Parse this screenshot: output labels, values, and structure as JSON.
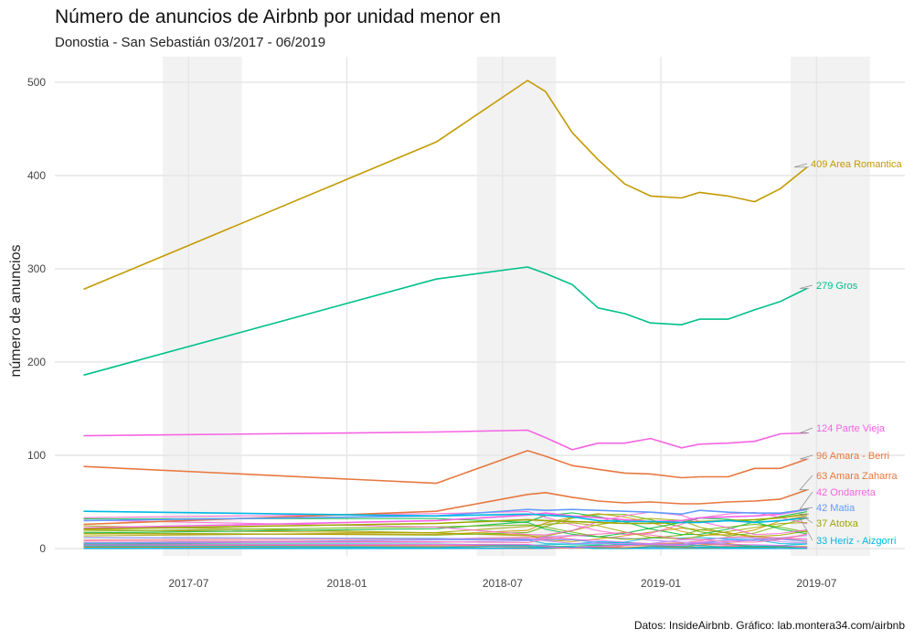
{
  "chart_data": {
    "type": "line",
    "title": "Número de anuncios de Airbnb por unidad menor en",
    "subtitle": "Donostia - San Sebastián 03/2017 - 06/2019",
    "ylabel": "número de anuncios",
    "xlabel": "",
    "caption": "Datos: InsideAirbnb. Gráfico: lab.montera34.com/airbnb",
    "ylim": [
      -8,
      528
    ],
    "yticks": [
      0,
      100,
      200,
      300,
      400,
      500
    ],
    "xticks": [
      {
        "value": "2017-07-01",
        "label": "2017-07"
      },
      {
        "value": "2018-01-01",
        "label": "2018-01"
      },
      {
        "value": "2018-07-01",
        "label": "2018-07"
      },
      {
        "value": "2019-01-01",
        "label": "2019-01"
      },
      {
        "value": "2019-07-01",
        "label": "2019-07"
      }
    ],
    "shaded_periods": [
      [
        "2017-06-01",
        "2017-09-01"
      ],
      [
        "2018-06-01",
        "2018-09-01"
      ],
      [
        "2019-06-01",
        "2019-09-01"
      ]
    ],
    "grid": true,
    "dates": [
      "2017-03-01",
      "2018-04-15",
      "2018-07-30",
      "2018-08-20",
      "2018-09-20",
      "2018-10-20",
      "2018-11-20",
      "2018-12-20",
      "2019-01-25",
      "2019-02-15",
      "2019-03-20",
      "2019-04-20",
      "2019-05-20",
      "2019-06-20"
    ],
    "series": [
      {
        "name": "Area Romantica",
        "label": "409 Area Romantica",
        "color": "#C49A00",
        "values": [
          278,
          436,
          502,
          490,
          446,
          417,
          391,
          378,
          376,
          382,
          378,
          372,
          386,
          409
        ]
      },
      {
        "name": "Gros",
        "label": "279 Gros",
        "color": "#00C08B",
        "values": [
          186,
          289,
          302,
          295,
          283,
          258,
          252,
          242,
          240,
          246,
          246,
          256,
          265,
          279
        ]
      },
      {
        "name": "Parte Vieja",
        "label": "124 Parte Vieja",
        "color": "#F564E3",
        "values": [
          121,
          125,
          127,
          119,
          106,
          113,
          113,
          118,
          108,
          112,
          113,
          115,
          123,
          124
        ]
      },
      {
        "name": "Amara - Berri",
        "label": "96 Amara - Berri",
        "color": "#E7783F",
        "values": [
          88,
          70,
          105,
          99,
          89,
          85,
          81,
          80,
          76,
          77,
          77,
          86,
          86,
          96
        ]
      },
      {
        "name": "Amara Zaharra",
        "label": "63 Amara Zaharra",
        "color": "#E7783F",
        "values": [
          26,
          40,
          58,
          60,
          55,
          51,
          49,
          50,
          48,
          48,
          50,
          51,
          53,
          63
        ]
      },
      {
        "name": "Ondarreta",
        "label": "42 Ondarreta",
        "color": "#F564E3",
        "values": [
          22,
          30,
          36,
          38,
          35,
          33,
          31,
          29,
          30,
          33,
          34,
          35,
          37,
          42
        ]
      },
      {
        "name": "Matia",
        "label": "42 Matia",
        "color": "#619CFF",
        "values": [
          30,
          35,
          42,
          41,
          42,
          41,
          40,
          39,
          37,
          41,
          39,
          38,
          38,
          42
        ]
      },
      {
        "name": "Atotxa",
        "label": "37 Atotxa",
        "color": "#9DA700",
        "values": [
          21,
          27,
          31,
          30,
          29,
          28,
          27,
          27,
          28,
          29,
          30,
          31,
          33,
          37
        ]
      },
      {
        "name": "Heriz - Aizgorri",
        "label": "33 Heriz - Aizgorri",
        "color": "#00B8E5",
        "values": [
          40,
          35,
          37,
          36,
          34,
          30,
          29,
          29,
          28,
          28,
          30,
          28,
          30,
          33
        ]
      }
    ],
    "other_series_count": 30,
    "other_series_range": [
      0,
      35
    ]
  }
}
